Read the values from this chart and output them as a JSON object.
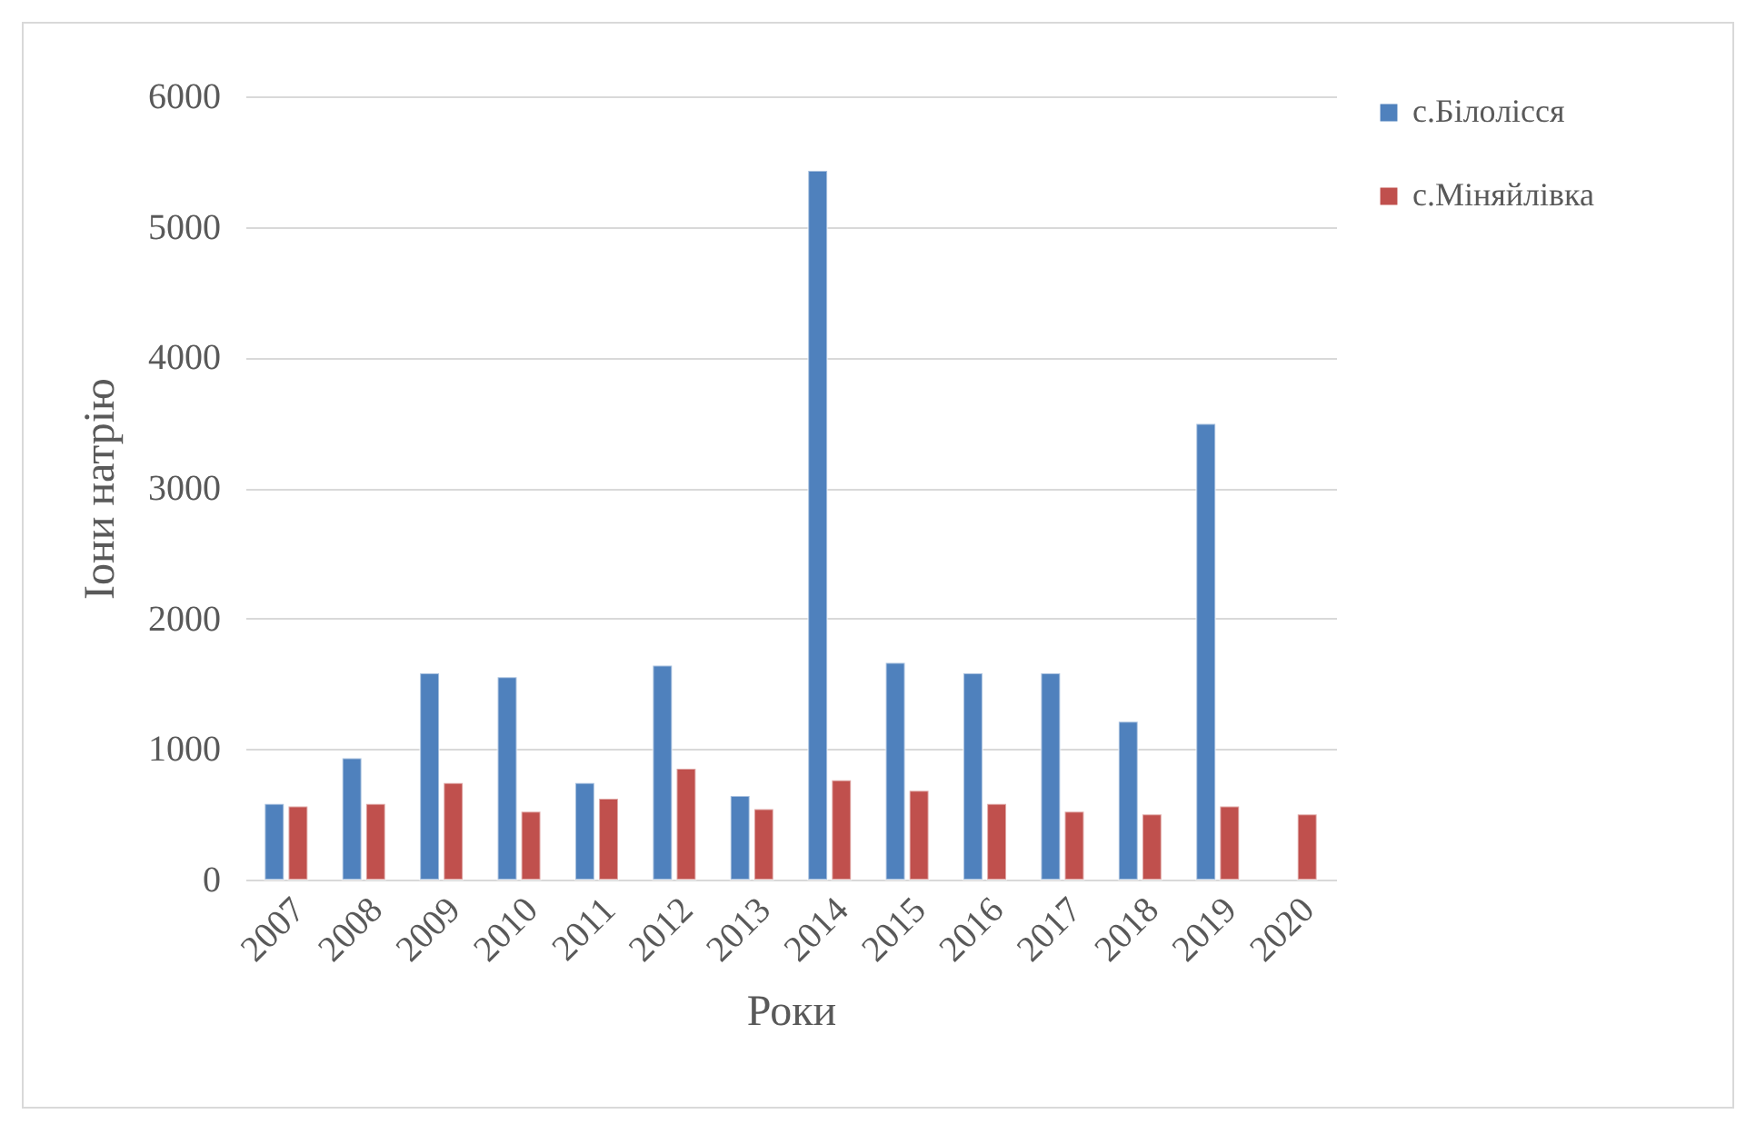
{
  "chart_data": {
    "type": "bar",
    "xlabel": "Роки",
    "ylabel": "Іони натрію",
    "categories": [
      "2007",
      "2008",
      "2009",
      "2010",
      "2011",
      "2012",
      "2013",
      "2014",
      "2015",
      "2016",
      "2017",
      "2018",
      "2019",
      "2020"
    ],
    "series": [
      {
        "name": "с.Білолісся",
        "color": "#4f81bd",
        "values": [
          580,
          930,
          1580,
          1550,
          740,
          1640,
          640,
          5430,
          1660,
          1580,
          1580,
          1210,
          3490,
          null
        ]
      },
      {
        "name": "с.Міняйлівка",
        "color": "#c0504d",
        "values": [
          560,
          580,
          740,
          520,
          620,
          850,
          540,
          760,
          680,
          580,
          520,
          500,
          560,
          500
        ]
      }
    ],
    "ylim": [
      0,
      6000
    ],
    "yticks": [
      0,
      1000,
      2000,
      3000,
      4000,
      5000,
      6000
    ],
    "grid": "y",
    "legend": "right"
  }
}
